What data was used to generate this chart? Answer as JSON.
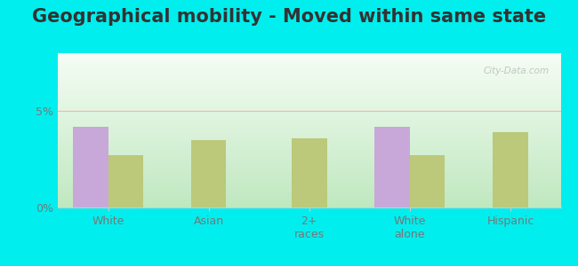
{
  "title": "Geographical mobility - Moved within same state",
  "categories": [
    "White",
    "Asian",
    "2+\nraces",
    "White\nalone",
    "Hispanic"
  ],
  "craigsville_bars": [
    4.2,
    0,
    0,
    4.2,
    0
  ],
  "wv_bars": [
    2.7,
    3.5,
    3.6,
    2.7,
    3.9
  ],
  "ylim": [
    0,
    8
  ],
  "bar_width": 0.35,
  "outer_bg": "#00eeee",
  "bar_color_craigsville": "#c8a8d8",
  "bar_color_wv": "#bcc87a",
  "title_fontsize": 15,
  "tick_fontsize": 9,
  "legend_fontsize": 9
}
